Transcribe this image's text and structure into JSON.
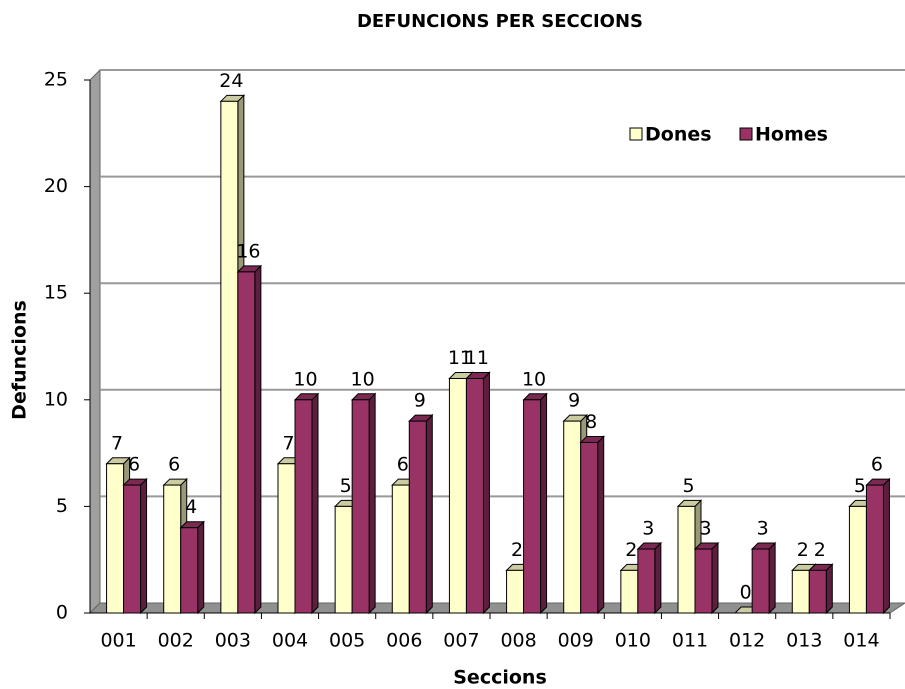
{
  "chart_data": {
    "type": "bar",
    "title": "DEFUNCIONS PER SECCIONS",
    "x_label": "Seccions",
    "y_label": "Defuncions",
    "categories": [
      "001",
      "002",
      "003",
      "004",
      "005",
      "006",
      "007",
      "008",
      "009",
      "010",
      "011",
      "012",
      "013",
      "014"
    ],
    "series": [
      {
        "name": "Dones",
        "color": "#ffffcc",
        "values": [
          7,
          6,
          24,
          7,
          5,
          6,
          11,
          2,
          9,
          2,
          5,
          0,
          2,
          5
        ]
      },
      {
        "name": "Homes",
        "color": "#993366",
        "values": [
          6,
          4,
          16,
          10,
          10,
          9,
          11,
          10,
          8,
          3,
          3,
          3,
          2,
          6
        ]
      }
    ],
    "ylim": [
      0,
      25
    ],
    "yticks": [
      0,
      5,
      10,
      15,
      20,
      25
    ],
    "grid": true,
    "legend": "top-right"
  }
}
